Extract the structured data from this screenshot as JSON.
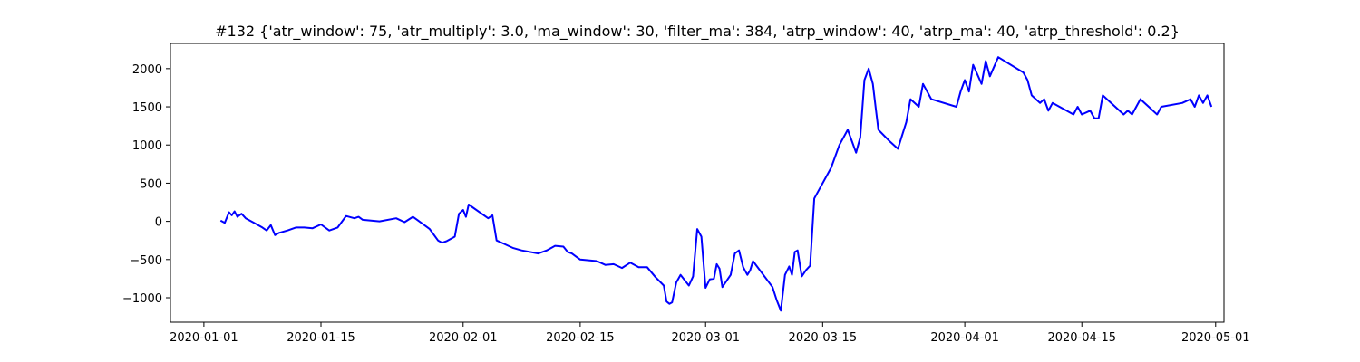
{
  "chart_data": {
    "type": "line",
    "title": "#132 {'atr_window': 75, 'atr_multiply': 3.0, 'ma_window': 30, 'filter_ma': 384, 'atrp_window': 40, 'atrp_ma': 40, 'atrp_threshold': 0.2}",
    "xlabel": "",
    "ylabel": "",
    "x_axis": {
      "type": "date",
      "range": [
        "2019-12-28",
        "2020-05-02"
      ],
      "tick_values": [
        "2020-01-01",
        "2020-01-15",
        "2020-02-01",
        "2020-02-15",
        "2020-03-01",
        "2020-03-15",
        "2020-04-01",
        "2020-04-15",
        "2020-05-01"
      ],
      "tick_labels": [
        "2020-01-01",
        "2020-01-15",
        "2020-02-01",
        "2020-02-15",
        "2020-03-01",
        "2020-03-15",
        "2020-04-01",
        "2020-04-15",
        "2020-05-01"
      ]
    },
    "y_axis": {
      "range": [
        -1320,
        2330
      ],
      "ticks": [
        -1000,
        -500,
        0,
        500,
        1000,
        1500,
        2000
      ],
      "tick_labels": [
        "−1000",
        "−500",
        "0",
        "500",
        "1000",
        "1500",
        "2000"
      ]
    },
    "grid": false,
    "legend": "none",
    "series": [
      {
        "color": "#0000ff",
        "x": [
          "2020-01-03",
          "2020-01-03",
          "2020-01-04",
          "2020-01-04",
          "2020-01-04",
          "2020-01-05",
          "2020-01-05",
          "2020-01-06",
          "2020-01-07",
          "2020-01-08",
          "2020-01-08",
          "2020-01-09",
          "2020-01-09",
          "2020-01-10",
          "2020-01-11",
          "2020-01-12",
          "2020-01-13",
          "2020-01-14",
          "2020-01-15",
          "2020-01-16",
          "2020-01-17",
          "2020-01-18",
          "2020-01-19",
          "2020-01-19",
          "2020-01-20",
          "2020-01-21",
          "2020-01-22",
          "2020-01-24",
          "2020-01-25",
          "2020-01-26",
          "2020-01-26",
          "2020-01-27",
          "2020-01-28",
          "2020-01-29",
          "2020-01-29",
          "2020-01-30",
          "2020-01-31",
          "2020-01-31",
          "2020-02-01",
          "2020-02-01",
          "2020-02-01",
          "2020-02-04",
          "2020-02-04",
          "2020-02-05",
          "2020-02-06",
          "2020-02-07",
          "2020-02-08",
          "2020-02-10",
          "2020-02-11",
          "2020-02-12",
          "2020-02-13",
          "2020-02-13",
          "2020-02-14",
          "2020-02-15",
          "2020-02-17",
          "2020-02-18",
          "2020-02-19",
          "2020-02-20",
          "2020-02-21",
          "2020-02-22",
          "2020-02-23",
          "2020-02-24",
          "2020-02-25",
          "2020-02-25",
          "2020-02-25",
          "2020-02-26",
          "2020-02-26",
          "2020-02-27",
          "2020-02-28",
          "2020-02-28",
          "2020-02-29",
          "2020-02-29",
          "2020-03-01",
          "2020-03-01",
          "2020-03-02",
          "2020-03-02",
          "2020-03-02",
          "2020-03-03",
          "2020-03-04",
          "2020-03-04",
          "2020-03-05",
          "2020-03-05",
          "2020-03-06",
          "2020-03-06",
          "2020-03-06",
          "2020-03-09",
          "2020-03-09",
          "2020-03-10",
          "2020-03-10",
          "2020-03-11",
          "2020-03-11",
          "2020-03-11",
          "2020-03-12",
          "2020-03-12",
          "2020-03-13",
          "2020-03-13",
          "2020-03-14",
          "2020-03-16",
          "2020-03-17",
          "2020-03-18",
          "2020-03-18",
          "2020-03-19",
          "2020-03-19",
          "2020-03-20",
          "2020-03-20",
          "2020-03-21",
          "2020-03-21",
          "2020-03-21",
          "2020-03-23",
          "2020-03-24",
          "2020-03-25",
          "2020-03-25",
          "2020-03-26",
          "2020-03-26",
          "2020-03-27",
          "2020-03-28",
          "2020-03-31",
          "2020-03-31",
          "2020-04-01",
          "2020-04-01",
          "2020-04-02",
          "2020-04-03",
          "2020-04-03",
          "2020-04-04",
          "2020-04-05",
          "2020-04-08",
          "2020-04-08",
          "2020-04-09",
          "2020-04-10",
          "2020-04-10",
          "2020-04-11",
          "2020-04-11",
          "2020-04-14",
          "2020-04-14",
          "2020-04-15",
          "2020-04-16",
          "2020-04-16",
          "2020-04-17",
          "2020-04-17",
          "2020-04-20",
          "2020-04-20",
          "2020-04-21",
          "2020-04-22",
          "2020-04-23",
          "2020-04-23",
          "2020-04-24",
          "2020-04-24",
          "2020-04-27",
          "2020-04-28",
          "2020-04-28",
          "2020-04-29",
          "2020-04-29",
          "2020-04-30",
          "2020-04-30"
        ],
        "y": [
          10,
          -20,
          120,
          80,
          130,
          60,
          100,
          40,
          -20,
          -80,
          -120,
          -50,
          -180,
          -150,
          -120,
          -80,
          -80,
          -90,
          -40,
          -120,
          -80,
          70,
          40,
          60,
          20,
          10,
          0,
          40,
          -10,
          60,
          20,
          -20,
          -100,
          -250,
          -280,
          -260,
          -200,
          100,
          150,
          60,
          220,
          40,
          80,
          -250,
          -300,
          -350,
          -380,
          -420,
          -380,
          -320,
          -330,
          -400,
          -420,
          -500,
          -520,
          -570,
          -560,
          -610,
          -540,
          -600,
          -600,
          -730,
          -840,
          -1050,
          -1080,
          -1060,
          -800,
          -700,
          -840,
          -720,
          -100,
          -200,
          -870,
          -760,
          -750,
          -560,
          -620,
          -860,
          -700,
          -420,
          -380,
          -600,
          -700,
          -640,
          -520,
          -860,
          -1030,
          -1170,
          -700,
          -590,
          -700,
          -400,
          -380,
          -720,
          -640,
          -580,
          300,
          700,
          1000,
          1200,
          1050,
          900,
          1100,
          1850,
          2000,
          1800,
          1500,
          1200,
          1050,
          950,
          1300,
          1600,
          1550,
          1500,
          1800,
          1600,
          1500,
          1700,
          1850,
          1700,
          2050,
          1800,
          2100,
          1900,
          2150,
          1950,
          1850,
          1650,
          1550,
          1600,
          1450,
          1550,
          1400,
          1500,
          1400,
          1450,
          1350,
          1350,
          1650,
          1400,
          1450,
          1400,
          1600,
          1500,
          1450,
          1400,
          1500,
          1550,
          1600,
          1500,
          1650,
          1550,
          1650,
          1500
        ],
        "values_note": ""
      }
    ]
  }
}
